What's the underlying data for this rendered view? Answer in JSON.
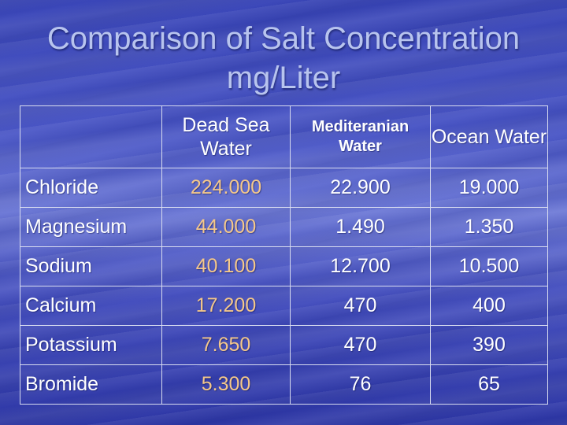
{
  "slide": {
    "title_line1": "Comparison of Salt Concentration",
    "title_line2": "mg/Liter"
  },
  "table": {
    "headers": [
      "",
      "Dead Sea Water",
      "Mediteranian Water",
      "Ocean Water"
    ],
    "rows": [
      {
        "label": "Chloride",
        "dead_sea": "224.000",
        "mediterranean": "22.900",
        "ocean": "19.000"
      },
      {
        "label": "Magnesium",
        "dead_sea": "44.000",
        "mediterranean": "1.490",
        "ocean": "1.350"
      },
      {
        "label": "Sodium",
        "dead_sea": "40.100",
        "mediterranean": "12.700",
        "ocean": "10.500"
      },
      {
        "label": "Calcium",
        "dead_sea": "17.200",
        "mediterranean": "470",
        "ocean": "400"
      },
      {
        "label": "Potassium",
        "dead_sea": "7.650",
        "mediterranean": "470",
        "ocean": "390"
      },
      {
        "label": "Bromide",
        "dead_sea": "5.300",
        "mediterranean": "76",
        "ocean": "65"
      }
    ]
  },
  "colors": {
    "background": "#4a56c6",
    "title": "#b8c4ee",
    "text": "#ffffff",
    "dead_sea_values": "#f5c88a",
    "grid": "#d8dcf0"
  }
}
